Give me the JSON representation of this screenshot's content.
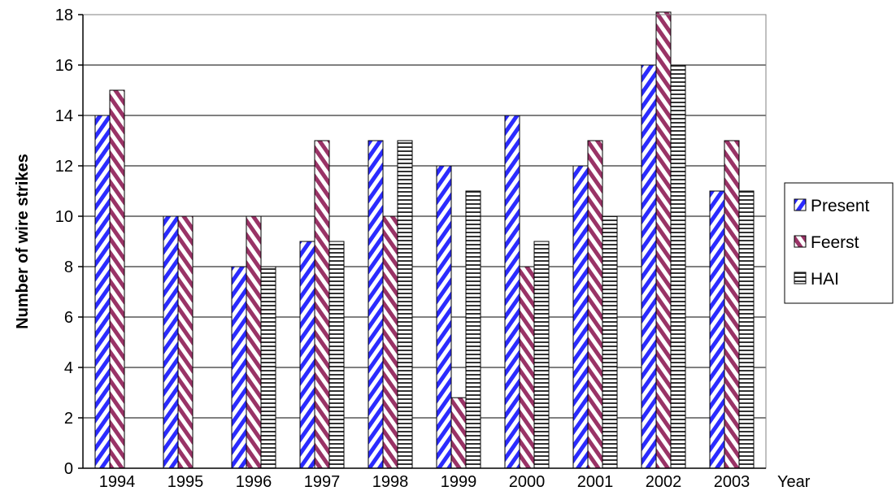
{
  "chart_data": {
    "type": "bar",
    "categories": [
      "1994",
      "1995",
      "1996",
      "1997",
      "1998",
      "1999",
      "2000",
      "2001",
      "2002",
      "2003"
    ],
    "series": [
      {
        "name": "Present",
        "values": [
          14,
          10,
          8,
          9,
          13,
          12,
          14,
          12,
          16,
          11
        ],
        "color": "#2b2bff",
        "pattern": "diagonal-forward"
      },
      {
        "name": "Feerst",
        "values": [
          15,
          10,
          10,
          13,
          10,
          2.8,
          8,
          13,
          18.1,
          13
        ],
        "color": "#993366",
        "pattern": "diagonal-backward"
      },
      {
        "name": "HAI",
        "values": [
          null,
          null,
          8,
          9,
          13,
          11,
          9,
          10,
          16,
          11
        ],
        "color": "#333333",
        "pattern": "horizontal"
      }
    ],
    "title": "",
    "xlabel": "Year",
    "ylabel": "Number of wire strikes",
    "ylim": [
      0,
      18
    ],
    "yticks": [
      0,
      2,
      4,
      6,
      8,
      10,
      12,
      14,
      16,
      18
    ],
    "grid": true,
    "legend_position": "right"
  }
}
